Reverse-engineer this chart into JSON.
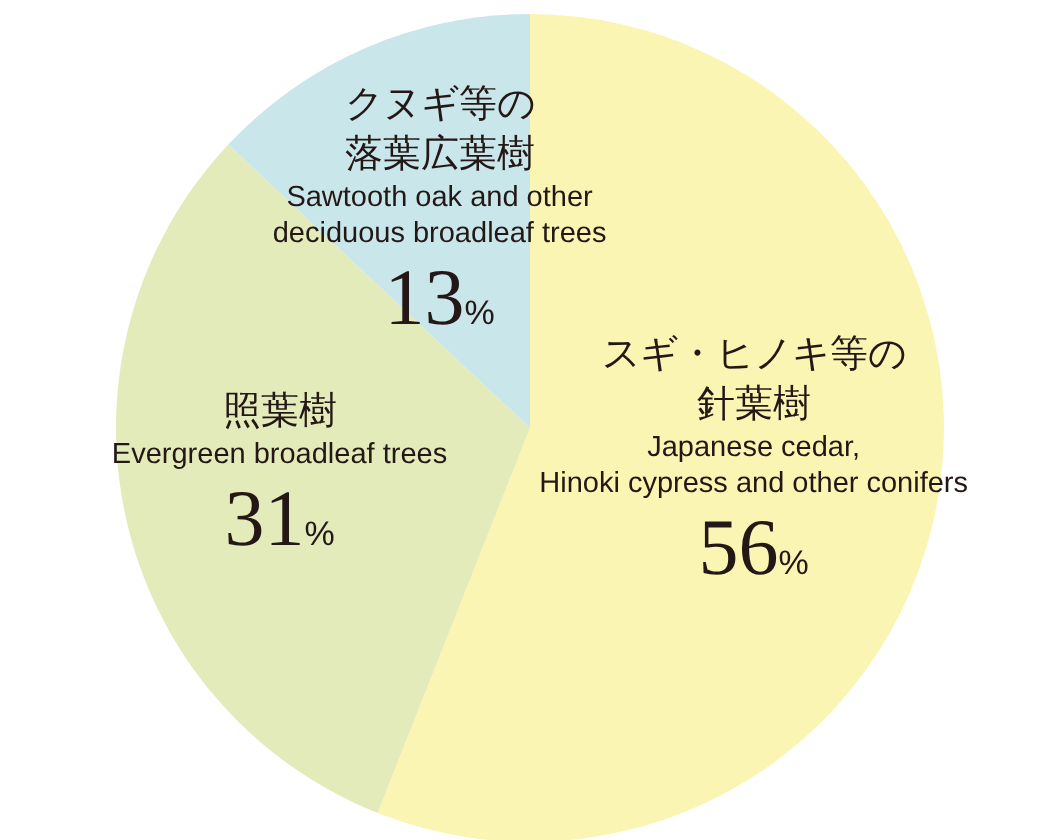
{
  "chart_data": {
    "type": "pie",
    "categories": [
      "スギ・ヒノキ等の針葉樹",
      "照葉樹",
      "クヌギ等の落葉広葉樹"
    ],
    "annotations": [
      "Japanese cedar,\nHinoki cypress and other conifers",
      "Evergreen broadleaf trees",
      "Sawtooth oak and other\ndeciduous broadleaf trees"
    ],
    "values": [
      56,
      31,
      13
    ],
    "value_labels": [
      "56%",
      "31%",
      "13%"
    ],
    "colors": [
      "#fbf5b3",
      "#e4ebbb",
      "#c9e6ea"
    ]
  }
}
